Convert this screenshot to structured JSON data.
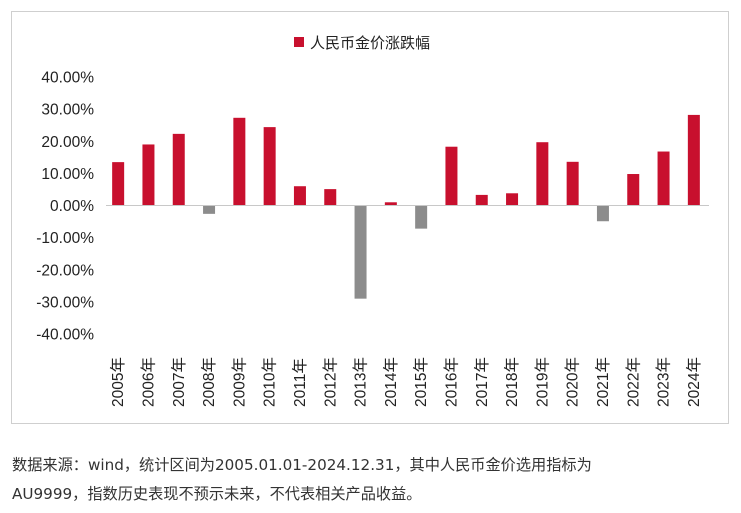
{
  "chart_data": {
    "type": "bar",
    "series": [
      {
        "name": "人民币金价涨跌幅",
        "color": "#c8102e",
        "negative_color": "#8c8c8c",
        "values": [
          13.5,
          19.0,
          22.3,
          -2.6,
          27.3,
          24.4,
          6.0,
          5.1,
          -29.0,
          1.0,
          -7.2,
          18.3,
          3.3,
          3.8,
          19.7,
          13.6,
          -4.9,
          9.8,
          16.8,
          28.2
        ]
      }
    ],
    "categories": [
      "2005年",
      "2006年",
      "2007年",
      "2008年",
      "2009年",
      "2010年",
      "2011年",
      "2012年",
      "2013年",
      "2014年",
      "2015年",
      "2016年",
      "2017年",
      "2018年",
      "2019年",
      "2020年",
      "2021年",
      "2022年",
      "2023年",
      "2024年"
    ],
    "ylim": [
      -40,
      40
    ],
    "y_ticks": [
      "40.00%",
      "30.00%",
      "20.00%",
      "10.00%",
      "0.00%",
      "-10.00%",
      "-20.00%",
      "-30.00%",
      "-40.00%"
    ],
    "grid": false,
    "legend_position": "top-center"
  },
  "caption": {
    "line1": "数据来源：wind，统计区间为2005.01.01-2024.12.31，其中人民币金价选用指标为",
    "line2": "AU9999，指数历史表现不预示未来，不代表相关产品收益。"
  }
}
